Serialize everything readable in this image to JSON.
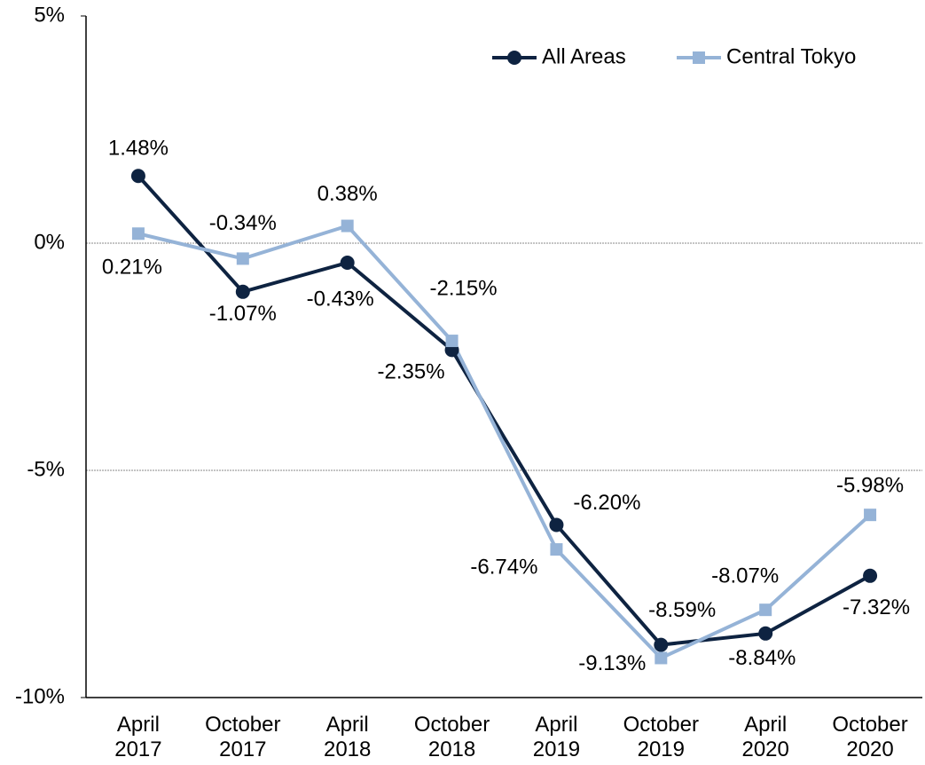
{
  "chart_data": {
    "type": "line",
    "categories": [
      "April 2017",
      "October 2017",
      "April 2018",
      "October 2018",
      "April 2019",
      "October 2019",
      "April 2020",
      "October 2020"
    ],
    "series": [
      {
        "name": "All Areas",
        "color": "#0e2341",
        "marker": "circle",
        "values": [
          1.48,
          -1.07,
          -0.43,
          -2.35,
          -6.2,
          -8.84,
          -8.59,
          -7.32
        ],
        "value_labels": [
          "1.48%",
          "-1.07%",
          "-0.43%",
          "-2.35%",
          "-6.20%",
          "-8.84%",
          "-8.59%",
          "-7.32%"
        ]
      },
      {
        "name": "Central Tokyo",
        "color": "#95b3d7",
        "marker": "square",
        "values": [
          0.21,
          -0.34,
          0.38,
          -2.15,
          -6.74,
          -9.13,
          -8.07,
          -5.98
        ],
        "value_labels": [
          "0.21%",
          "-0.34%",
          "0.38%",
          "-2.15%",
          "-6.74%",
          "-9.13%",
          "-8.07%",
          "-5.98%"
        ]
      }
    ],
    "ylim": [
      -10,
      5
    ],
    "yticks": [
      {
        "value": -10,
        "label": "-10%"
      },
      {
        "value": -5,
        "label": "-5%"
      },
      {
        "value": 0,
        "label": "0%"
      },
      {
        "value": 5,
        "label": "5%"
      }
    ],
    "grid": true,
    "legend": "upper right"
  }
}
